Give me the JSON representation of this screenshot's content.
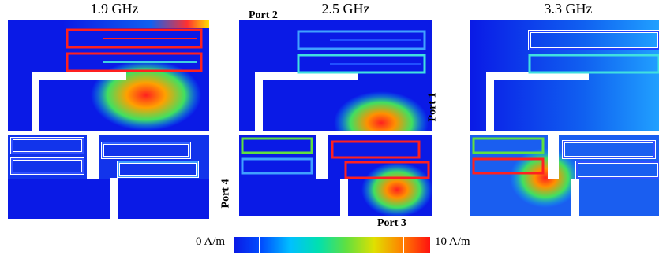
{
  "panels": [
    {
      "frequency": "1.9 GHz"
    },
    {
      "frequency": "2.5 GHz"
    },
    {
      "frequency": "3.3 GHz"
    }
  ],
  "ports": {
    "port1": "Port 1",
    "port2": "Port 2",
    "port3": "Port 3",
    "port4": "Port 4"
  },
  "colorbar": {
    "min_label": "0 A/m",
    "max_label": "10 A/m",
    "colors": [
      "#0a1ae6",
      "#0050ff",
      "#00c0ff",
      "#00e0b0",
      "#60e040",
      "#e0e000",
      "#ff8000",
      "#ff1010"
    ]
  }
}
